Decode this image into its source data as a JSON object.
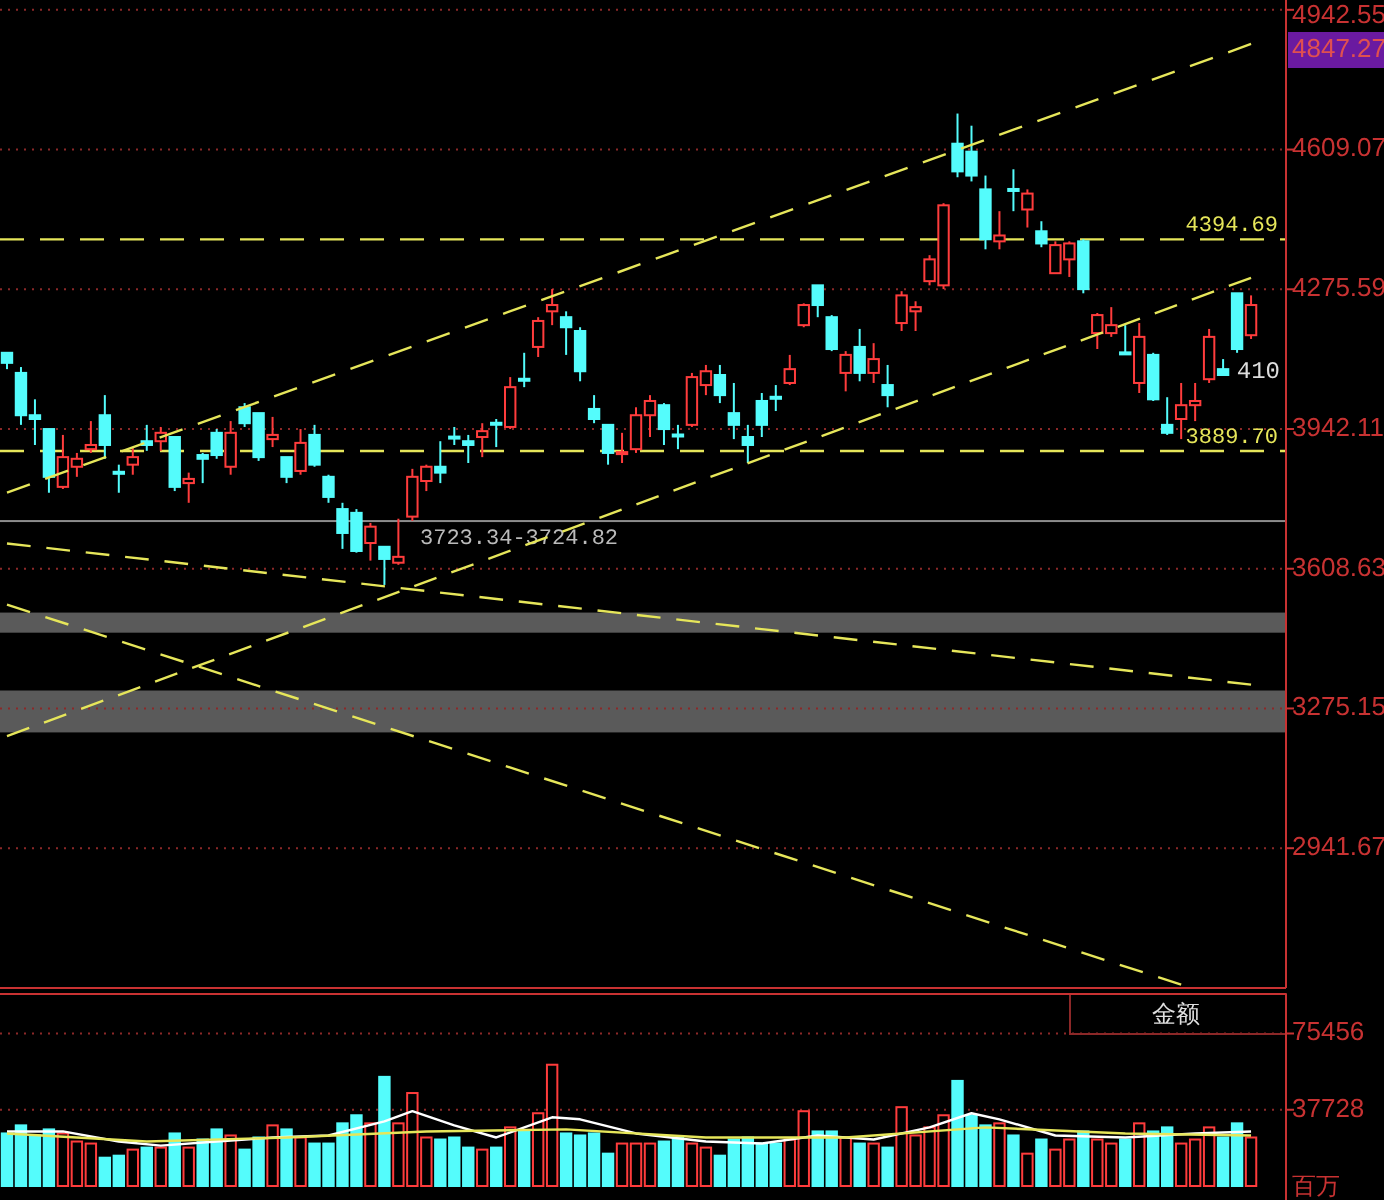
{
  "chart_data": [
    {
      "type": "candlestick",
      "categories": [
        null,
        null,
        null,
        null,
        null,
        null,
        null,
        null,
        null,
        null,
        null,
        null,
        null,
        null,
        null,
        null,
        null,
        null,
        null,
        null,
        null,
        null,
        null,
        null,
        null,
        null,
        null,
        null,
        null,
        null,
        null,
        null,
        null,
        null,
        null,
        null,
        null,
        null,
        null,
        null,
        null,
        null,
        null,
        null,
        null,
        null,
        null,
        null,
        null,
        null,
        null,
        null,
        null,
        null,
        null,
        null,
        null,
        null,
        null,
        null,
        null,
        null,
        null,
        null,
        null,
        null,
        null,
        null,
        null,
        null,
        null,
        null,
        null,
        null,
        null,
        null,
        null,
        null,
        null,
        null,
        null,
        null,
        null,
        null,
        null,
        null,
        null,
        null,
        null,
        null
      ],
      "ohlc": [
        [
          4124,
          4124,
          4085,
          4100
        ],
        [
          4076,
          4090,
          3952,
          3975
        ],
        [
          3975,
          4013,
          3904,
          3966
        ],
        [
          3942,
          3942,
          3790,
          3828
        ],
        [
          3804,
          3928,
          3799,
          3875
        ],
        [
          3852,
          3885,
          3828,
          3871
        ],
        [
          3894,
          3961,
          3885,
          3904
        ],
        [
          3975,
          4023,
          3871,
          3904
        ],
        [
          3840,
          3857,
          3790,
          3838
        ],
        [
          3857,
          3899,
          3833,
          3875
        ],
        [
          3913,
          3952,
          3890,
          3904
        ],
        [
          3913,
          3947,
          3890,
          3933
        ],
        [
          3923,
          3923,
          3794,
          3804
        ],
        [
          3813,
          3838,
          3766,
          3823
        ],
        [
          3880,
          3885,
          3813,
          3871
        ],
        [
          3933,
          3942,
          3871,
          3880
        ],
        [
          3852,
          3961,
          3833,
          3933
        ],
        [
          3994,
          4004,
          3947,
          3956
        ],
        [
          3980,
          3980,
          3866,
          3875
        ],
        [
          3918,
          3971,
          3899,
          3928
        ],
        [
          3875,
          3875,
          3813,
          3828
        ],
        [
          3842,
          3942,
          3833,
          3909
        ],
        [
          3928,
          3952,
          3852,
          3857
        ],
        [
          3828,
          3833,
          3766,
          3780
        ],
        [
          3751,
          3766,
          3656,
          3694
        ],
        [
          3742,
          3751,
          3647,
          3651
        ],
        [
          3670,
          3718,
          3628,
          3709
        ],
        [
          3661,
          3661,
          3570,
          3632
        ],
        [
          3623,
          3728,
          3618,
          3637
        ],
        [
          3733,
          3847,
          3723,
          3828
        ],
        [
          3818,
          3857,
          3794,
          3852
        ],
        [
          3852,
          3913,
          3813,
          3838
        ],
        [
          3924,
          3947,
          3904,
          3923
        ],
        [
          3913,
          3928,
          3861,
          3904
        ],
        [
          3923,
          3956,
          3875,
          3937
        ],
        [
          3957,
          3966,
          3899,
          3956
        ],
        [
          3947,
          4066,
          3942,
          4042
        ],
        [
          4062,
          4124,
          4042,
          4061
        ],
        [
          4138,
          4209,
          4114,
          4200
        ],
        [
          4223,
          4276,
          4190,
          4238
        ],
        [
          4209,
          4223,
          4119,
          4185
        ],
        [
          4176,
          4185,
          4056,
          4080
        ],
        [
          3990,
          4023,
          3956,
          3966
        ],
        [
          3952,
          3952,
          3857,
          3885
        ],
        [
          3885,
          3933,
          3861,
          3887
        ],
        [
          3894,
          3994,
          3885,
          3975
        ],
        [
          3975,
          4023,
          3923,
          4009
        ],
        [
          3999,
          4004,
          3904,
          3942
        ],
        [
          3929,
          3952,
          3894,
          3928
        ],
        [
          3952,
          4076,
          3947,
          4066
        ],
        [
          4047,
          4095,
          4023,
          4080
        ],
        [
          4071,
          4095,
          4004,
          4023
        ],
        [
          3980,
          4052,
          3918,
          3952
        ],
        [
          3923,
          3952,
          3861,
          3904
        ],
        [
          4009,
          4028,
          3923,
          3952
        ],
        [
          4019,
          4047,
          3985,
          4018
        ],
        [
          4052,
          4119,
          4047,
          4085
        ],
        [
          4190,
          4242,
          4185,
          4238
        ],
        [
          4285,
          4285,
          4209,
          4238
        ],
        [
          4209,
          4214,
          4128,
          4133
        ],
        [
          4076,
          4128,
          4032,
          4119
        ],
        [
          4138,
          4181,
          4056,
          4076
        ],
        [
          4076,
          4147,
          4052,
          4109
        ],
        [
          4047,
          4095,
          3994,
          4023
        ],
        [
          4195,
          4271,
          4176,
          4261
        ],
        [
          4223,
          4247,
          4176,
          4233
        ],
        [
          4295,
          4357,
          4285,
          4347
        ],
        [
          4285,
          4481,
          4276,
          4476
        ],
        [
          4623,
          4695,
          4543,
          4557
        ],
        [
          4604,
          4666,
          4533,
          4547
        ],
        [
          4514,
          4547,
          4371,
          4395
        ],
        [
          4390,
          4462,
          4371,
          4404
        ],
        [
          4515,
          4562,
          4462,
          4514
        ],
        [
          4466,
          4514,
          4423,
          4504
        ],
        [
          4414,
          4438,
          4376,
          4385
        ],
        [
          4314,
          4390,
          4314,
          4381
        ],
        [
          4347,
          4390,
          4305,
          4385
        ],
        [
          4390,
          4395,
          4266,
          4276
        ],
        [
          4171,
          4219,
          4133,
          4214
        ],
        [
          4171,
          4233,
          4162,
          4190
        ],
        [
          4125,
          4190,
          4119,
          4124
        ],
        [
          4052,
          4195,
          4028,
          4162
        ],
        [
          4119,
          4124,
          4009,
          4013
        ],
        [
          3952,
          4018,
          3928,
          3933
        ],
        [
          3966,
          4052,
          3918,
          3999
        ],
        [
          3999,
          4052,
          3961,
          4009
        ],
        [
          4061,
          4181,
          4052,
          4162
        ],
        [
          4085,
          4109,
          4071,
          4071
        ],
        [
          4266,
          4266,
          4124,
          4133
        ],
        [
          4166,
          4261,
          4157,
          4238
        ]
      ],
      "colors": [
        "#54fcfc",
        "#54fcfc",
        "#54fcfc",
        "#54fcfc",
        "#ff3c3c",
        "#ff3c3c",
        "#ff3c3c",
        "#54fcfc",
        "#54fcfc",
        "#ff3c3c",
        "#54fcfc",
        "#ff3c3c",
        "#54fcfc",
        "#ff3c3c",
        "#54fcfc",
        "#54fcfc",
        "#ff3c3c",
        "#54fcfc",
        "#54fcfc",
        "#ff3c3c",
        "#54fcfc",
        "#ff3c3c",
        "#54fcfc",
        "#54fcfc",
        "#54fcfc",
        "#54fcfc",
        "#ff3c3c",
        "#54fcfc",
        "#ff3c3c",
        "#ff3c3c",
        "#ff3c3c",
        "#54fcfc",
        "#54fcfc",
        "#54fcfc",
        "#ff3c3c",
        "#54fcfc",
        "#ff3c3c",
        "#54fcfc",
        "#ff3c3c",
        "#ff3c3c",
        "#54fcfc",
        "#54fcfc",
        "#54fcfc",
        "#54fcfc",
        "#ff3c3c",
        "#ff3c3c",
        "#ff3c3c",
        "#54fcfc",
        "#54fcfc",
        "#ff3c3c",
        "#ff3c3c",
        "#54fcfc",
        "#54fcfc",
        "#54fcfc",
        "#54fcfc",
        "#54fcfc",
        "#ff3c3c",
        "#ff3c3c",
        "#54fcfc",
        "#54fcfc",
        "#ff3c3c",
        "#54fcfc",
        "#ff3c3c",
        "#54fcfc",
        "#ff3c3c",
        "#ff3c3c",
        "#ff3c3c",
        "#ff3c3c",
        "#54fcfc",
        "#54fcfc",
        "#54fcfc",
        "#ff3c3c",
        "#54fcfc",
        "#ff3c3c",
        "#54fcfc",
        "#ff3c3c",
        "#ff3c3c",
        "#54fcfc",
        "#ff3c3c",
        "#ff3c3c",
        "#54fcfc",
        "#ff3c3c",
        "#54fcfc",
        "#54fcfc",
        "#ff3c3c",
        "#ff3c3c",
        "#ff3c3c",
        "#54fcfc",
        "#54fcfc",
        "#ff3c3c"
      ],
      "series": [
        {
          "type": "line",
          "color": "#e6e65a",
          "values": [
            3790,
            null,
            null,
            null,
            null,
            null,
            null,
            null,
            null,
            null,
            null,
            null,
            null,
            null,
            null,
            null,
            null,
            null,
            null,
            null,
            null,
            null,
            null,
            null,
            null,
            null,
            null,
            null,
            null,
            null,
            null,
            null,
            null,
            null,
            null,
            null,
            null,
            null,
            null,
            null,
            null,
            null,
            null,
            null,
            null,
            null,
            null,
            null,
            null,
            null,
            null,
            null,
            null,
            null,
            null,
            null,
            null,
            null,
            null,
            null,
            null,
            null,
            null,
            null,
            null,
            null,
            null,
            null,
            null,
            null,
            null,
            null,
            null,
            null,
            null,
            null,
            null,
            null,
            null,
            null,
            null,
            null,
            null,
            null,
            null,
            null,
            null,
            null,
            null,
            4861
          ]
        },
        {
          "type": "line",
          "color": "#e6e65a",
          "values": [
            3209,
            null,
            null,
            null,
            null,
            null,
            null,
            null,
            null,
            null,
            null,
            null,
            null,
            null,
            null,
            null,
            null,
            null,
            null,
            null,
            null,
            null,
            null,
            null,
            null,
            null,
            null,
            null,
            null,
            null,
            null,
            null,
            null,
            null,
            null,
            null,
            null,
            null,
            null,
            null,
            null,
            null,
            null,
            null,
            null,
            null,
            null,
            null,
            null,
            null,
            null,
            null,
            null,
            null,
            null,
            null,
            null,
            null,
            null,
            null,
            null,
            null,
            null,
            null,
            null,
            null,
            null,
            null,
            null,
            null,
            null,
            null,
            null,
            null,
            null,
            null,
            null,
            null,
            null,
            null,
            null,
            null,
            null,
            null,
            null,
            null,
            null,
            null,
            null,
            4303
          ]
        },
        {
          "type": "line",
          "color": "#e6e65a",
          "values": [
            3669,
            null,
            null,
            null,
            null,
            null,
            null,
            null,
            null,
            null,
            null,
            null,
            null,
            null,
            null,
            null,
            null,
            null,
            null,
            null,
            null,
            null,
            null,
            null,
            null,
            null,
            null,
            null,
            null,
            null,
            null,
            null,
            null,
            null,
            null,
            null,
            null,
            null,
            null,
            null,
            null,
            null,
            null,
            null,
            null,
            null,
            null,
            null,
            null,
            null,
            null,
            null,
            null,
            null,
            null,
            null,
            null,
            null,
            null,
            null,
            null,
            null,
            null,
            null,
            null,
            null,
            null,
            null,
            null,
            null,
            null,
            null,
            null,
            null,
            null,
            null,
            null,
            null,
            null,
            null,
            null,
            null,
            null,
            null,
            null,
            null,
            null,
            null,
            null,
            3332
          ]
        },
        {
          "type": "line",
          "color": "#e6e65a",
          "values": [
            3523,
            null,
            null,
            null,
            null,
            null,
            null,
            null,
            null,
            null,
            null,
            null,
            null,
            null,
            null,
            null,
            null,
            null,
            null,
            null,
            null,
            null,
            null,
            null,
            null,
            null,
            null,
            null,
            null,
            null,
            null,
            null,
            null,
            null,
            null,
            null,
            null,
            null,
            null,
            null,
            null,
            null,
            null,
            null,
            null,
            null,
            null,
            null,
            null,
            null,
            null,
            null,
            null,
            null,
            null,
            null,
            null,
            null,
            null,
            null,
            null,
            null,
            null,
            null,
            null,
            null,
            null,
            null,
            null,
            null,
            null,
            null,
            null,
            null,
            null,
            null,
            null,
            null,
            null,
            null,
            null,
            null,
            null,
            null,
            2616,
            null,
            null,
            null,
            null,
            null
          ]
        }
      ],
      "line_style": "dashed",
      "ylim": [
        2608,
        4966
      ],
      "yticks": [
        4942.55,
        4609.07,
        4275.59,
        3942.11,
        3608.63,
        3275.15,
        2941.67
      ],
      "grid": "y",
      "tick_labels": "y",
      "ref_lines": [
        {
          "axis": "y",
          "value": 4394.69,
          "label": "4394.69",
          "color": "#e6e65a",
          "line_style": "dashed"
        },
        {
          "axis": "y",
          "value": 3889.7,
          "label": "3889.70",
          "color": "#e6e65a",
          "line_style": "dashed"
        }
      ],
      "bands": [
        {
          "axis": "y",
          "from": 3723.34,
          "to": 3724.82,
          "label": "3723.34-3724.82",
          "color": "#8c8c8c"
        },
        {
          "axis": "y",
          "from": 3456,
          "to": 3504,
          "color": "#5a5a5a"
        },
        {
          "axis": "y",
          "from": 3218,
          "to": 3318,
          "color": "#5a5a5a"
        }
      ],
      "annotations": [
        "4847.27",
        "410"
      ]
    },
    {
      "type": "bar",
      "title": "金额",
      "ylabel": "百万",
      "categories": [
        null,
        null,
        null,
        null,
        null,
        null,
        null,
        null,
        null,
        null,
        null,
        null,
        null,
        null,
        null,
        null,
        null,
        null,
        null,
        null,
        null,
        null,
        null,
        null,
        null,
        null,
        null,
        null,
        null,
        null,
        null,
        null,
        null,
        null,
        null,
        null,
        null,
        null,
        null,
        null,
        null,
        null,
        null,
        null,
        null,
        null,
        null,
        null,
        null,
        null,
        null,
        null,
        null,
        null,
        null,
        null,
        null,
        null,
        null,
        null,
        null,
        null,
        null,
        null,
        null,
        null,
        null,
        null,
        null,
        null,
        null,
        null,
        null,
        null,
        null,
        null,
        null,
        null,
        null,
        null,
        null,
        null,
        null,
        null,
        null,
        null,
        null,
        null,
        null,
        null
      ],
      "series": [
        {
          "type": "bar",
          "colors": [
            "#54fcfc",
            "#54fcfc",
            "#54fcfc",
            "#54fcfc",
            "#ff3c3c",
            "#ff3c3c",
            "#ff3c3c",
            "#54fcfc",
            "#54fcfc",
            "#ff3c3c",
            "#54fcfc",
            "#ff3c3c",
            "#54fcfc",
            "#ff3c3c",
            "#54fcfc",
            "#54fcfc",
            "#ff3c3c",
            "#54fcfc",
            "#54fcfc",
            "#ff3c3c",
            "#54fcfc",
            "#ff3c3c",
            "#54fcfc",
            "#54fcfc",
            "#54fcfc",
            "#54fcfc",
            "#ff3c3c",
            "#54fcfc",
            "#ff3c3c",
            "#ff3c3c",
            "#ff3c3c",
            "#54fcfc",
            "#54fcfc",
            "#54fcfc",
            "#ff3c3c",
            "#54fcfc",
            "#ff3c3c",
            "#54fcfc",
            "#ff3c3c",
            "#ff3c3c",
            "#54fcfc",
            "#54fcfc",
            "#54fcfc",
            "#54fcfc",
            "#ff3c3c",
            "#ff3c3c",
            "#ff3c3c",
            "#54fcfc",
            "#54fcfc",
            "#ff3c3c",
            "#ff3c3c",
            "#54fcfc",
            "#54fcfc",
            "#54fcfc",
            "#54fcfc",
            "#54fcfc",
            "#ff3c3c",
            "#ff3c3c",
            "#54fcfc",
            "#54fcfc",
            "#ff3c3c",
            "#54fcfc",
            "#ff3c3c",
            "#54fcfc",
            "#ff3c3c",
            "#ff3c3c",
            "#ff3c3c",
            "#ff3c3c",
            "#54fcfc",
            "#54fcfc",
            "#54fcfc",
            "#ff3c3c",
            "#54fcfc",
            "#ff3c3c",
            "#54fcfc",
            "#ff3c3c",
            "#ff3c3c",
            "#54fcfc",
            "#ff3c3c",
            "#ff3c3c",
            "#54fcfc",
            "#ff3c3c",
            "#54fcfc",
            "#54fcfc",
            "#ff3c3c",
            "#ff3c3c",
            "#ff3c3c",
            "#54fcfc",
            "#54fcfc",
            "#ff3c3c"
          ],
          "values": [
            26000,
            30000,
            25000,
            28000,
            26000,
            22000,
            21000,
            14000,
            15000,
            18000,
            19000,
            19000,
            26000,
            19000,
            23000,
            28000,
            25000,
            18000,
            24000,
            30000,
            28000,
            24000,
            21000,
            21000,
            31000,
            35000,
            31000,
            54000,
            31000,
            46000,
            24000,
            23000,
            24000,
            19000,
            18000,
            19000,
            29000,
            27000,
            36000,
            60000,
            26000,
            25000,
            26000,
            16000,
            21000,
            21000,
            21000,
            22000,
            24000,
            21000,
            19000,
            15000,
            23000,
            24000,
            21000,
            21000,
            23000,
            37000,
            27000,
            27000,
            24000,
            21000,
            21000,
            19000,
            39000,
            25000,
            29000,
            35000,
            52000,
            35000,
            30000,
            31000,
            25000,
            16000,
            23000,
            18000,
            23000,
            27000,
            23000,
            21000,
            23000,
            31000,
            27000,
            29000,
            21000,
            23000,
            29000,
            24000,
            31000,
            24000
          ]
        },
        {
          "type": "line",
          "color": "#ffffff",
          "values": [
            27000,
            null,
            null,
            null,
            27000,
            null,
            null,
            null,
            22000,
            null,
            null,
            20000,
            null,
            null,
            null,
            22000,
            null,
            null,
            null,
            24000,
            null,
            null,
            null,
            25000,
            null,
            null,
            null,
            32000,
            null,
            37000,
            null,
            null,
            30000,
            null,
            null,
            24000,
            null,
            null,
            null,
            34000,
            null,
            33000,
            null,
            null,
            null,
            26000,
            null,
            null,
            null,
            null,
            22000,
            null,
            null,
            null,
            21000,
            null,
            null,
            null,
            25000,
            null,
            null,
            null,
            23000,
            null,
            null,
            null,
            29000,
            null,
            null,
            36000,
            null,
            33000,
            null,
            null,
            null,
            25000,
            null,
            null,
            null,
            null,
            24000,
            null,
            null,
            null,
            null,
            26000,
            null,
            null,
            null,
            27000
          ]
        },
        {
          "type": "line",
          "color": "#e6e65a",
          "values": [
            26000,
            null,
            null,
            null,
            null,
            null,
            null,
            null,
            null,
            null,
            22000,
            null,
            null,
            null,
            null,
            null,
            null,
            null,
            null,
            null,
            24000,
            null,
            null,
            null,
            null,
            null,
            null,
            null,
            null,
            null,
            27000,
            null,
            null,
            null,
            null,
            null,
            null,
            null,
            null,
            null,
            28000,
            null,
            null,
            null,
            null,
            null,
            null,
            null,
            null,
            null,
            24000,
            null,
            null,
            null,
            null,
            null,
            null,
            null,
            null,
            null,
            24000,
            null,
            null,
            null,
            null,
            null,
            null,
            null,
            null,
            null,
            29000,
            null,
            null,
            null,
            null,
            null,
            null,
            null,
            null,
            null,
            26000,
            null,
            null,
            null,
            null,
            null,
            null,
            null,
            null,
            25000
          ]
        }
      ],
      "ylim": [
        0,
        95000
      ],
      "yticks": [
        75456,
        37728
      ],
      "grid": "y",
      "tick_labels": "y"
    }
  ]
}
